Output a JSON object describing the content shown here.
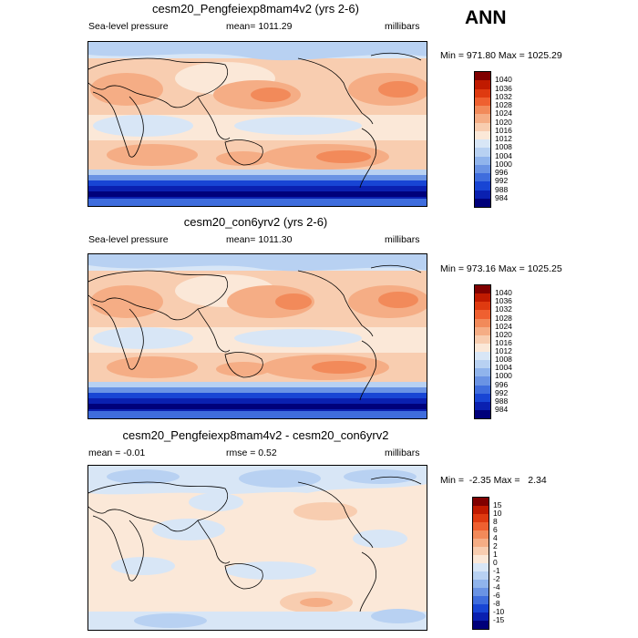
{
  "figure": {
    "season_label": "ANN"
  },
  "panels": [
    {
      "title": "cesm20_Pengfeiexp8mam4v2 (yrs 2-6)",
      "left_text": "Sea-level pressure",
      "center_text": "mean= 1011.29",
      "right_text": "millibars",
      "minmax_text": "Min = 971.80 Max = 1025.29"
    },
    {
      "title": "cesm20_con6yrv2 (yrs 2-6)",
      "left_text": "Sea-level pressure",
      "center_text": "mean= 1011.30",
      "right_text": "millibars",
      "minmax_text": "Min = 973.16 Max = 1025.25"
    },
    {
      "title": "cesm20_Pengfeiexp8mam4v2 - cesm20_con6yrv2",
      "left_text": "mean =  -0.01",
      "center_text": "rmse =   0.52",
      "right_text": "millibars",
      "minmax_text": "Min =  -2.35 Max =   2.34"
    }
  ],
  "colorbars": {
    "absolute": {
      "labels": [
        "1040",
        "1036",
        "1032",
        "1028",
        "1024",
        "1020",
        "1016",
        "1012",
        "1008",
        "1004",
        "1000",
        "996",
        "992",
        "988",
        "984"
      ],
      "colors": [
        "#800000",
        "#c01a00",
        "#df3a10",
        "#ef6030",
        "#f28a5a",
        "#f5ad85",
        "#f8cdb0",
        "#fbe8d8",
        "#d8e6f6",
        "#b8d1f2",
        "#90b4ec",
        "#6a93e4",
        "#3f6ddd",
        "#1845d4",
        "#0a20b0",
        "#00007a"
      ]
    },
    "difference": {
      "labels": [
        "15",
        "10",
        "8",
        "6",
        "4",
        "2",
        "1",
        "0",
        "-1",
        "-2",
        "-4",
        "-6",
        "-8",
        "-10",
        "-15"
      ],
      "colors": [
        "#800000",
        "#c01a00",
        "#df3a10",
        "#ef6030",
        "#f28a5a",
        "#f5ad85",
        "#f8cdb0",
        "#fbe8d8",
        "#d8e6f6",
        "#b8d1f2",
        "#90b4ec",
        "#6a93e4",
        "#3f6ddd",
        "#1845d4",
        "#0a20b0",
        "#00007a"
      ]
    }
  }
}
